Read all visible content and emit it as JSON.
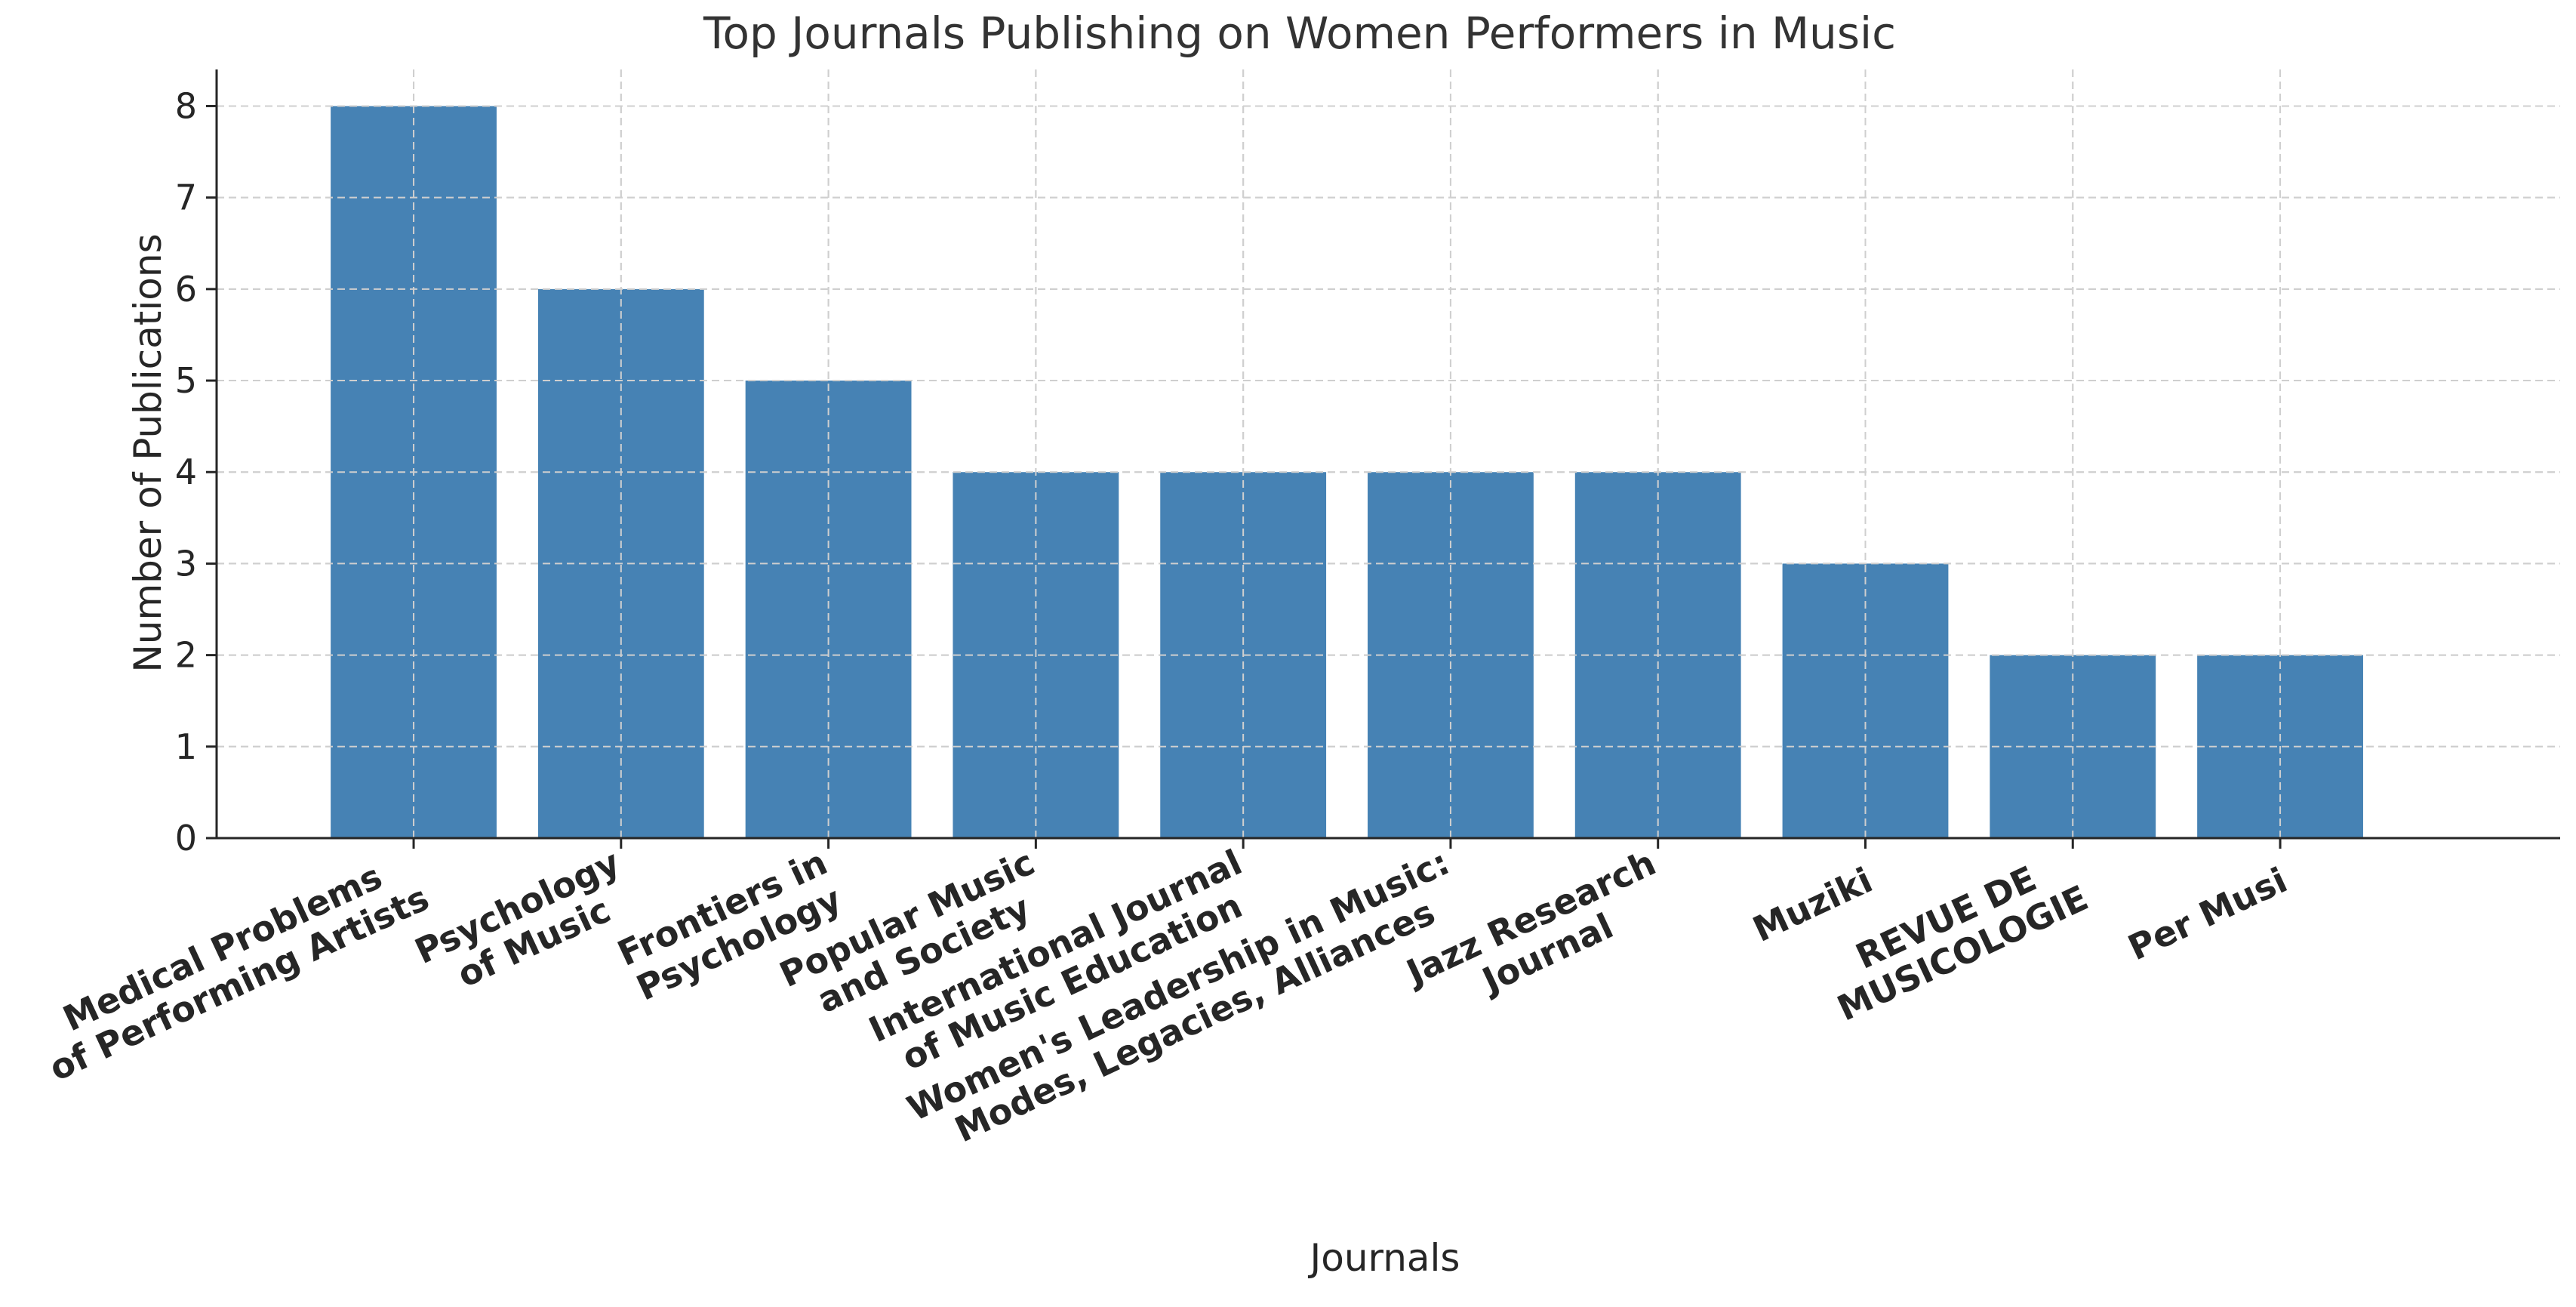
{
  "chart_data": {
    "type": "bar",
    "title": "Top Journals Publishing on Women Performers in Music",
    "xlabel": "Journals",
    "ylabel": "Number of Publications",
    "categories": [
      [
        "Medical Problems",
        "of Performing Artists"
      ],
      [
        "Psychology",
        "of Music"
      ],
      [
        "Frontiers in",
        "Psychology"
      ],
      [
        "Popular Music",
        "and Society"
      ],
      [
        "International Journal",
        "of Music Education"
      ],
      [
        "Women's Leadership in Music:",
        "Modes, Legacies, Alliances"
      ],
      [
        "Jazz Research",
        "Journal"
      ],
      [
        "Muziki"
      ],
      [
        "REVUE DE",
        "MUSICOLOGIE"
      ],
      [
        "Per Musi"
      ]
    ],
    "values": [
      8,
      6,
      5,
      4,
      4,
      4,
      4,
      3,
      2,
      2
    ],
    "ylim": [
      0,
      8.4
    ],
    "yticks": [
      0,
      1,
      2,
      3,
      4,
      5,
      6,
      7,
      8
    ],
    "grid": true,
    "bar_color": "#4682b4"
  }
}
